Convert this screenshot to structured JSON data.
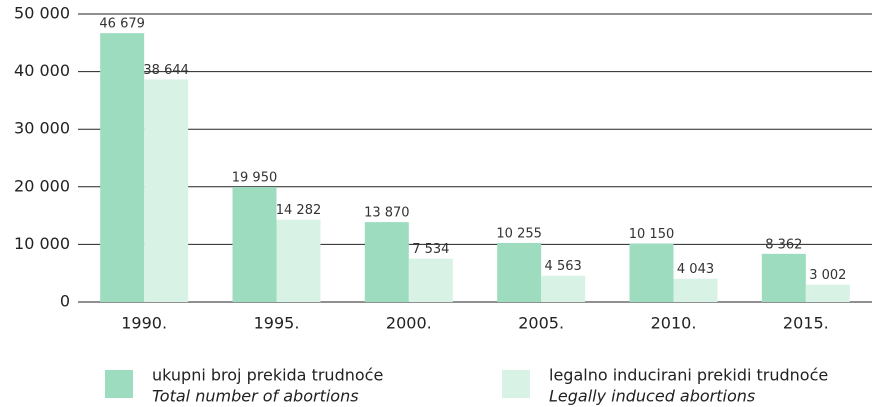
{
  "chart_data": {
    "type": "bar",
    "categories": [
      "1990.",
      "1995.",
      "2000.",
      "2005.",
      "2010.",
      "2015."
    ],
    "series": [
      {
        "name": "ukupni broj prekida trudnoće",
        "name_en": "Total number of abortions",
        "color": "#9edcbf",
        "values": [
          46679,
          19950,
          13870,
          10255,
          10150,
          8362
        ],
        "value_labels": [
          "46 679",
          "19 950",
          "13 870",
          "10 255",
          "10 150",
          "8 362"
        ]
      },
      {
        "name": "legalno inducirani prekidi trudnoće",
        "name_en": "Legally induced abortions",
        "color": "#d8f2e6",
        "values": [
          38644,
          14282,
          7534,
          4563,
          4043,
          3002
        ],
        "value_labels": [
          "38 644",
          "14 282",
          "7 534",
          "4 563",
          "4 043",
          "3 002"
        ]
      }
    ],
    "ylim": [
      0,
      50000
    ],
    "yticks": [
      {
        "value": 0,
        "label": "0"
      },
      {
        "value": 10000,
        "label": "10 000"
      },
      {
        "value": 20000,
        "label": "20 000"
      },
      {
        "value": 30000,
        "label": "30 000"
      },
      {
        "value": 40000,
        "label": "40 000"
      },
      {
        "value": 50000,
        "label": "50 000"
      }
    ],
    "grid": true
  }
}
